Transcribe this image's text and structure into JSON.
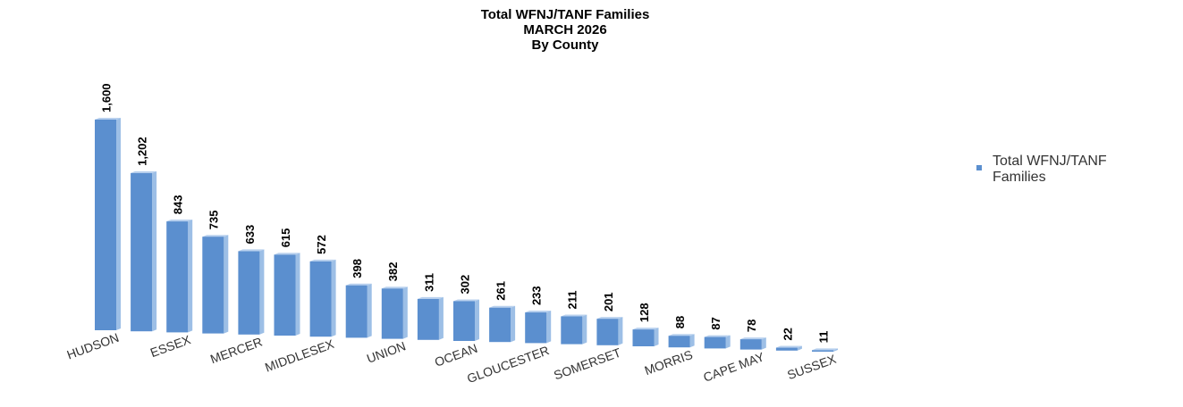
{
  "chart_data": {
    "type": "bar3d",
    "title": [
      "Total WFNJ/TANF Families",
      "MARCH 2026",
      "By County"
    ],
    "categories": [
      "HUDSON",
      null,
      "ESSEX",
      null,
      "MERCER",
      null,
      "MIDDLESEX",
      null,
      "UNION",
      null,
      "OCEAN",
      null,
      "GLOUCESTER",
      null,
      "SOMERSET",
      null,
      "MORRIS",
      null,
      "CAPE MAY",
      null,
      "SUSSEX"
    ],
    "series": [
      {
        "name": "Total WFNJ/TANF Families",
        "color": "#5b8fcf",
        "values": [
          1600,
          1202,
          843,
          735,
          633,
          615,
          572,
          398,
          382,
          311,
          302,
          261,
          233,
          211,
          201,
          128,
          88,
          87,
          78,
          22,
          11
        ],
        "value_labels": [
          "1,600",
          "1,202",
          "843",
          "735",
          "633",
          "615",
          "572",
          "398",
          "382",
          "311",
          "302",
          "261",
          "233",
          "211",
          "201",
          "128",
          "88",
          "87",
          "78",
          "22",
          "11"
        ]
      }
    ],
    "legend": "right"
  }
}
